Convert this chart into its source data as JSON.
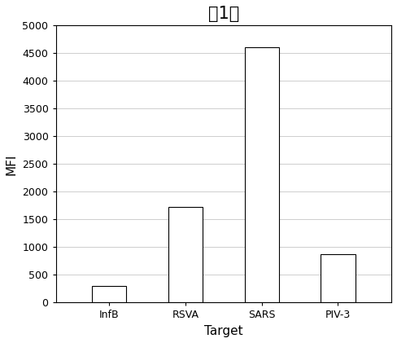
{
  "title": "第1组",
  "categories": [
    "InfB",
    "RSVA",
    "SARS",
    "PIV-3"
  ],
  "values": [
    300,
    1720,
    4600,
    870
  ],
  "xlabel": "Target",
  "ylabel": "MFI",
  "ylim": [
    0,
    5000
  ],
  "yticks": [
    0,
    500,
    1000,
    1500,
    2000,
    2500,
    3000,
    3500,
    4000,
    4500,
    5000
  ],
  "bar_color": "#ffffff",
  "bar_edgecolor": "#000000",
  "grid_color": "#bbbbbb",
  "title_fontsize": 15,
  "label_fontsize": 11,
  "tick_fontsize": 9,
  "bar_width": 0.45
}
